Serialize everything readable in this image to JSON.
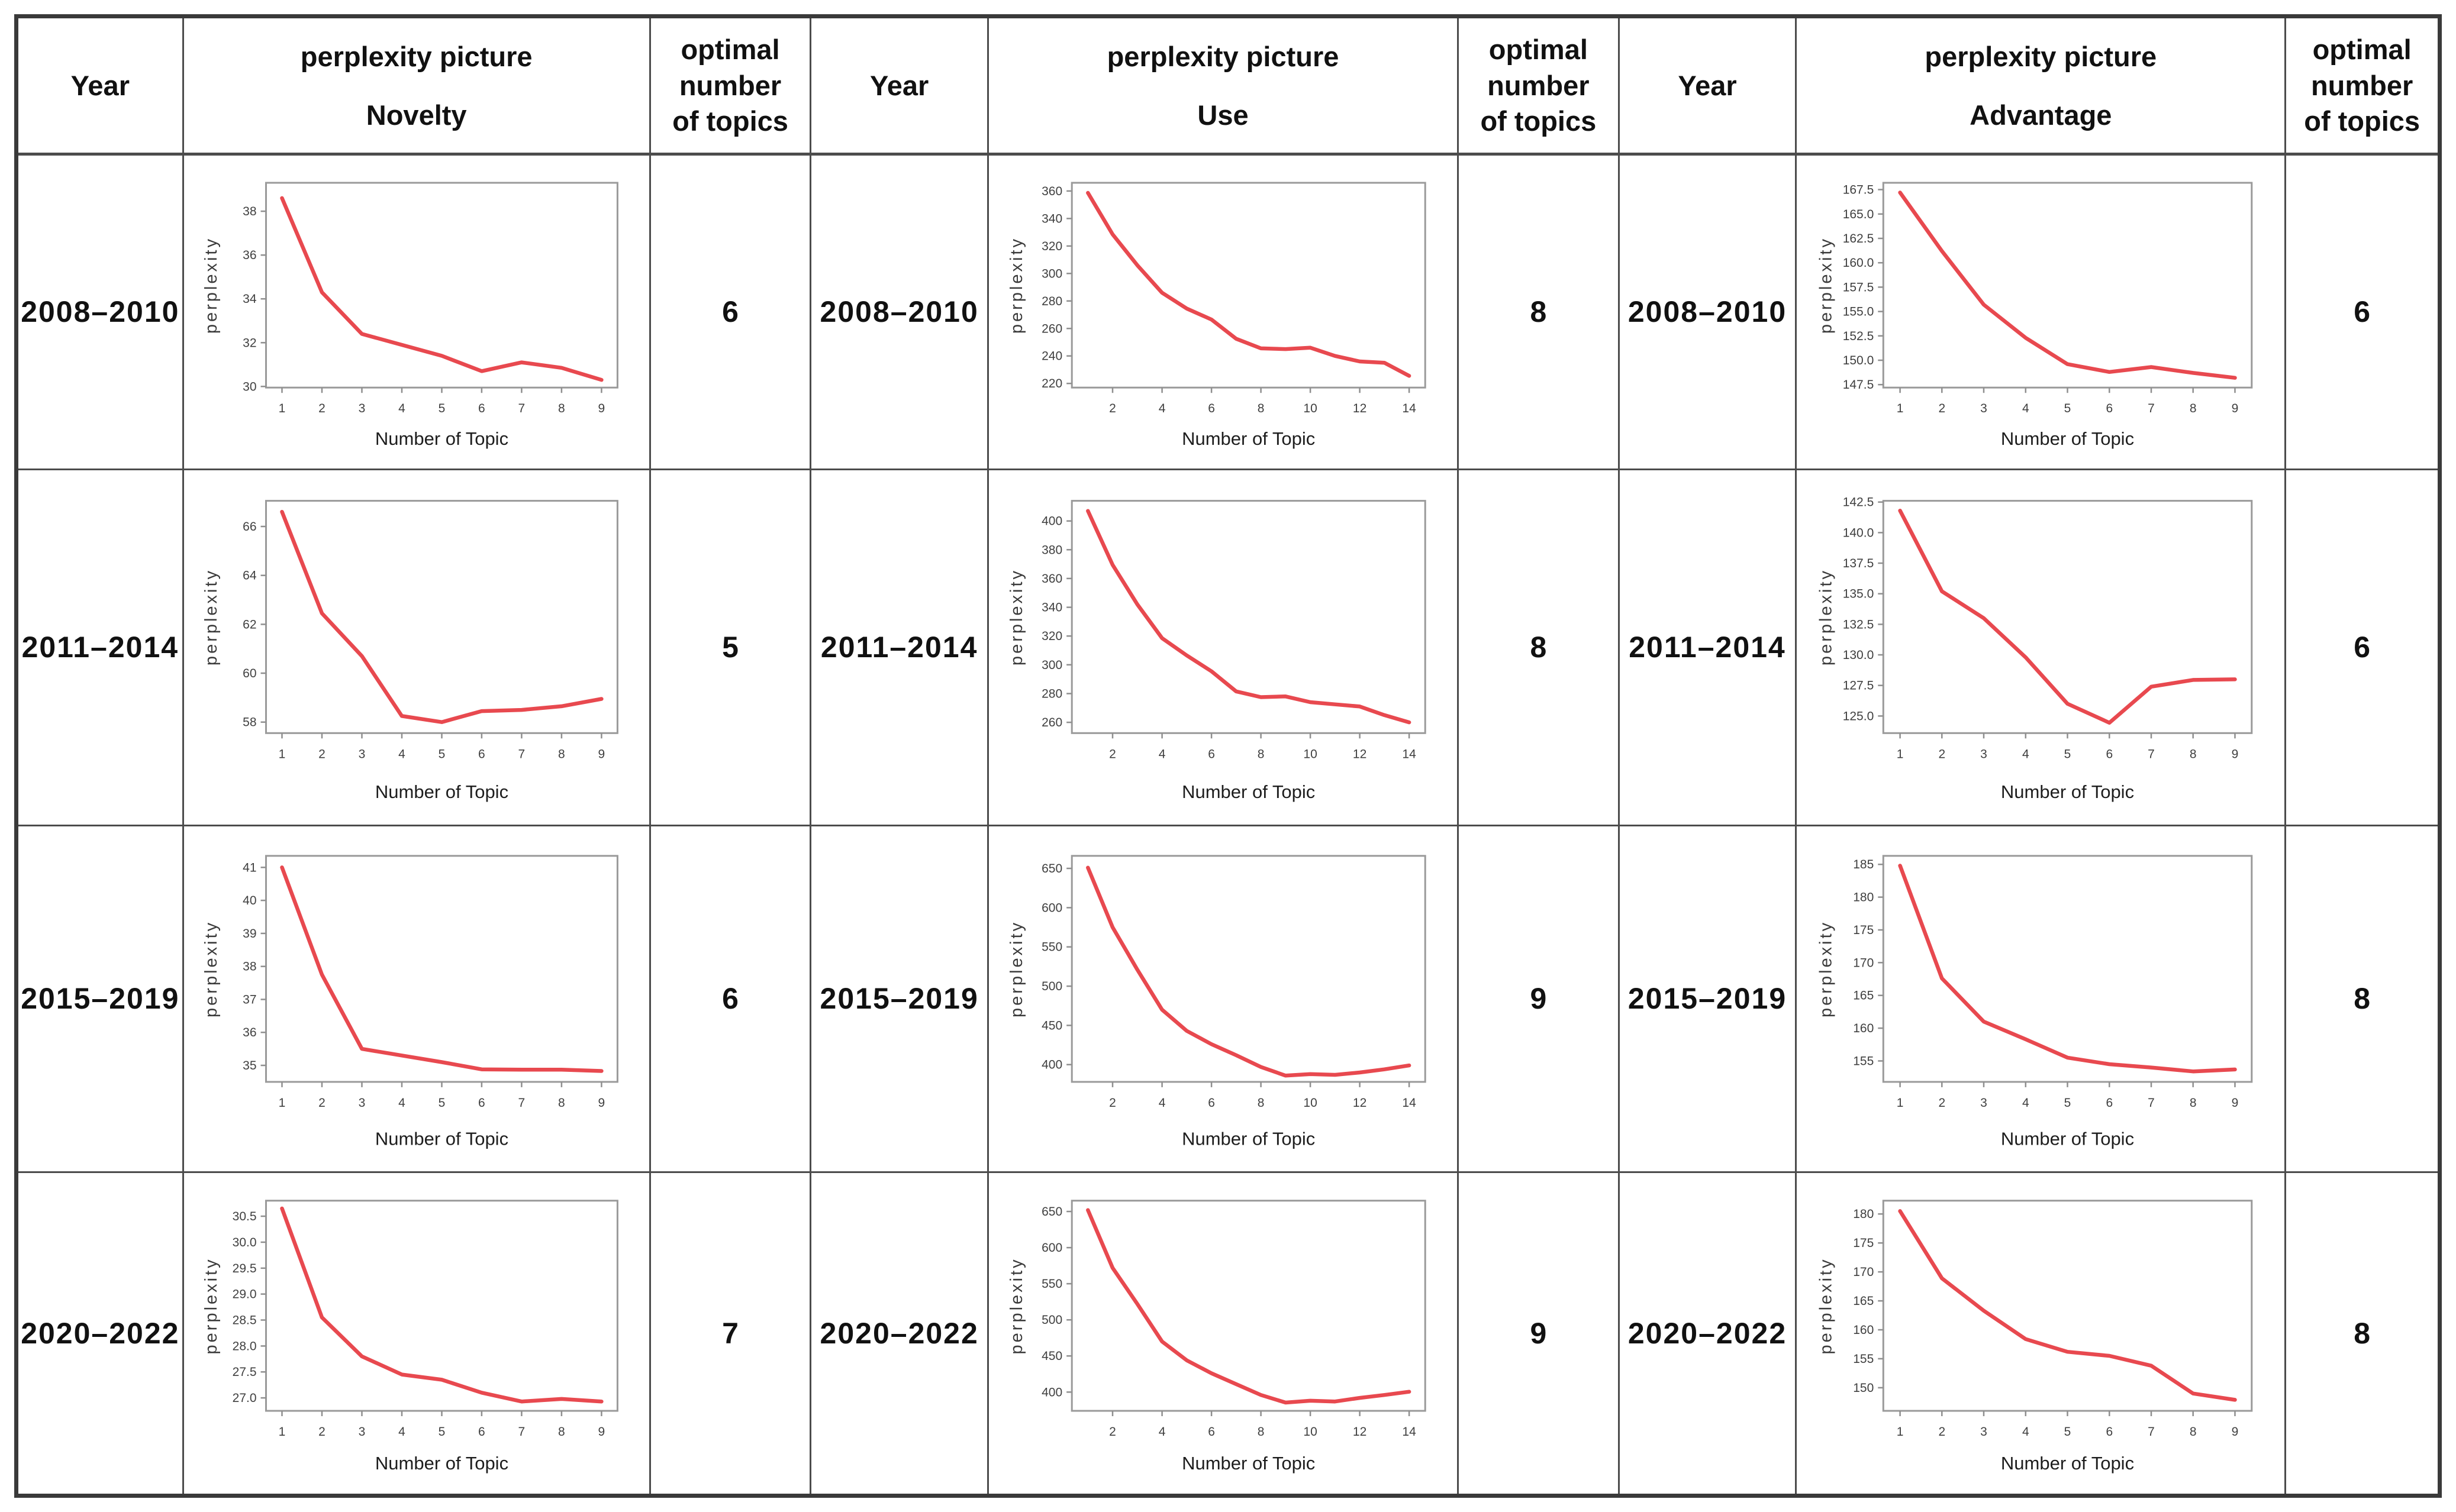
{
  "accent": "#e8494f",
  "frame_color": "#9a9a9a",
  "table": {
    "headers": {
      "year": "Year",
      "picture": "perplexity picture",
      "optimal": "optimal\nnumber\nof topics"
    },
    "sections": [
      "Novelty",
      "Use",
      "Advantage"
    ]
  },
  "rows": [
    {
      "year": "2008–2010",
      "novelty_optimal": "6",
      "use_optimal": "8",
      "advantage_optimal": "6"
    },
    {
      "year": "2011–2014",
      "novelty_optimal": "5",
      "use_optimal": "8",
      "advantage_optimal": "6"
    },
    {
      "year": "2015–2019",
      "novelty_optimal": "6",
      "use_optimal": "9",
      "advantage_optimal": "8"
    },
    {
      "year": "2020–2022",
      "novelty_optimal": "7",
      "use_optimal": "9",
      "advantage_optimal": "8"
    }
  ],
  "chart_data": [
    {
      "type": "line",
      "section": "Novelty",
      "year": "2008–2010",
      "xlabel": "Number of Topic",
      "ylabel": "perplexity",
      "x": [
        1,
        2,
        3,
        4,
        5,
        6,
        7,
        8,
        9
      ],
      "values": [
        38.6,
        34.3,
        32.4,
        31.9,
        31.4,
        30.7,
        31.1,
        30.85,
        30.3
      ],
      "xticks": [
        "1",
        "2",
        "3",
        "4",
        "5",
        "6",
        "7",
        "8",
        "9"
      ],
      "yticks": [
        "30",
        "32",
        "34",
        "36",
        "38"
      ],
      "ylim": [
        29.95,
        39.3
      ],
      "grid": false,
      "legend": null
    },
    {
      "type": "line",
      "section": "Use",
      "year": "2008–2010",
      "xlabel": "Number of Topic",
      "ylabel": "perplexity",
      "x": [
        1,
        2,
        3,
        4,
        5,
        6,
        7,
        8,
        9,
        10,
        11,
        12,
        13,
        14
      ],
      "values": [
        358.7,
        328.5,
        306,
        286,
        274.5,
        266.5,
        252.5,
        245.5,
        245,
        246,
        240,
        236,
        235,
        225.5
      ],
      "xticks": [
        "2",
        "4",
        "6",
        "8",
        "10",
        "12",
        "14"
      ],
      "yticks": [
        "220",
        "240",
        "260",
        "280",
        "300",
        "320",
        "340",
        "360"
      ],
      "ylim": [
        217,
        366
      ],
      "grid": false,
      "legend": null
    },
    {
      "type": "line",
      "section": "Advantage",
      "year": "2008–2010",
      "xlabel": "Number of Topic",
      "ylabel": "perplexity",
      "x": [
        1,
        2,
        3,
        4,
        5,
        6,
        7,
        8,
        9
      ],
      "values": [
        167.2,
        161.2,
        155.7,
        152.3,
        149.6,
        148.8,
        149.3,
        148.7,
        148.2
      ],
      "xticks": [
        "1",
        "2",
        "3",
        "4",
        "5",
        "6",
        "7",
        "8",
        "9"
      ],
      "yticks": [
        "147.5",
        "150.0",
        "152.5",
        "155.0",
        "157.5",
        "160.0",
        "162.5",
        "165.0",
        "167.5"
      ],
      "ylim": [
        147.2,
        168.2
      ],
      "grid": false,
      "legend": null
    },
    {
      "type": "line",
      "section": "Novelty",
      "year": "2011–2014",
      "xlabel": "Number of Topic",
      "ylabel": "perplexity",
      "x": [
        1,
        2,
        3,
        4,
        5,
        6,
        7,
        8,
        9
      ],
      "values": [
        66.6,
        62.45,
        60.7,
        58.25,
        58.0,
        58.45,
        58.5,
        58.65,
        58.95
      ],
      "xticks": [
        "1",
        "2",
        "3",
        "4",
        "5",
        "6",
        "7",
        "8",
        "9"
      ],
      "yticks": [
        "58",
        "60",
        "62",
        "64",
        "66"
      ],
      "ylim": [
        57.55,
        67.05
      ],
      "grid": false,
      "legend": null
    },
    {
      "type": "line",
      "section": "Use",
      "year": "2011–2014",
      "xlabel": "Number of Topic",
      "ylabel": "perplexity",
      "x": [
        1,
        2,
        3,
        4,
        5,
        6,
        7,
        8,
        9,
        10,
        11,
        12,
        13,
        14
      ],
      "values": [
        407,
        369.5,
        342,
        318.5,
        306.5,
        295.5,
        281.5,
        277.5,
        278,
        274,
        272.5,
        271,
        265,
        260
      ],
      "xticks": [
        "2",
        "4",
        "6",
        "8",
        "10",
        "12",
        "14"
      ],
      "yticks": [
        "260",
        "280",
        "300",
        "320",
        "340",
        "360",
        "380",
        "400"
      ],
      "ylim": [
        252.5,
        414
      ],
      "grid": false,
      "legend": null
    },
    {
      "type": "line",
      "section": "Advantage",
      "year": "2011–2014",
      "xlabel": "Number of Topic",
      "ylabel": "perplexity",
      "x": [
        1,
        2,
        3,
        4,
        5,
        6,
        7,
        8,
        9
      ],
      "values": [
        141.8,
        135.2,
        133.0,
        129.8,
        126.0,
        124.45,
        127.4,
        127.95,
        128.0
      ],
      "xticks": [
        "1",
        "2",
        "3",
        "4",
        "5",
        "6",
        "7",
        "8",
        "9"
      ],
      "yticks": [
        "125.0",
        "127.5",
        "130.0",
        "132.5",
        "135.0",
        "137.5",
        "140.0",
        "142.5"
      ],
      "ylim": [
        123.6,
        142.6
      ],
      "grid": false,
      "legend": null
    },
    {
      "type": "line",
      "section": "Novelty",
      "year": "2015–2019",
      "xlabel": "Number of Topic",
      "ylabel": "perplexity",
      "x": [
        1,
        2,
        3,
        4,
        5,
        6,
        7,
        8,
        9
      ],
      "values": [
        41.0,
        37.75,
        35.5,
        35.3,
        35.1,
        34.88,
        34.87,
        34.87,
        34.83
      ],
      "xticks": [
        "1",
        "2",
        "3",
        "4",
        "5",
        "6",
        "7",
        "8",
        "9"
      ],
      "yticks": [
        "35",
        "36",
        "37",
        "38",
        "39",
        "40",
        "41"
      ],
      "ylim": [
        34.5,
        41.35
      ],
      "grid": false,
      "legend": null
    },
    {
      "type": "line",
      "section": "Use",
      "year": "2015–2019",
      "xlabel": "Number of Topic",
      "ylabel": "perplexity",
      "x": [
        1,
        2,
        3,
        4,
        5,
        6,
        7,
        8,
        9,
        10,
        11,
        12,
        13,
        14
      ],
      "values": [
        651,
        575,
        521,
        470,
        443,
        426,
        412,
        397,
        386,
        388,
        387,
        390,
        394,
        399
      ],
      "xticks": [
        "2",
        "4",
        "6",
        "8",
        "10",
        "12",
        "14"
      ],
      "yticks": [
        "400",
        "450",
        "500",
        "550",
        "600",
        "650"
      ],
      "ylim": [
        378,
        666
      ],
      "grid": false,
      "legend": null
    },
    {
      "type": "line",
      "section": "Advantage",
      "year": "2015–2019",
      "xlabel": "Number of Topic",
      "ylabel": "perplexity",
      "x": [
        1,
        2,
        3,
        4,
        5,
        6,
        7,
        8,
        9
      ],
      "values": [
        184.8,
        167.6,
        161.0,
        158.3,
        155.5,
        154.5,
        154.0,
        153.4,
        153.7
      ],
      "xticks": [
        "1",
        "2",
        "3",
        "4",
        "5",
        "6",
        "7",
        "8",
        "9"
      ],
      "yticks": [
        "155",
        "160",
        "165",
        "170",
        "175",
        "180",
        "185"
      ],
      "ylim": [
        151.8,
        186.3
      ],
      "grid": false,
      "legend": null
    },
    {
      "type": "line",
      "section": "Novelty",
      "year": "2020–2022",
      "xlabel": "Number of Topic",
      "ylabel": "perplexity",
      "x": [
        1,
        2,
        3,
        4,
        5,
        6,
        7,
        8,
        9
      ],
      "values": [
        30.65,
        28.55,
        27.8,
        27.45,
        27.35,
        27.1,
        26.93,
        26.98,
        26.93
      ],
      "xticks": [
        "1",
        "2",
        "3",
        "4",
        "5",
        "6",
        "7",
        "8",
        "9"
      ],
      "yticks": [
        "27.0",
        "27.5",
        "28.0",
        "28.5",
        "29.0",
        "29.5",
        "30.0",
        "30.5"
      ],
      "ylim": [
        26.75,
        30.8
      ],
      "grid": false,
      "legend": null
    },
    {
      "type": "line",
      "section": "Use",
      "year": "2020–2022",
      "xlabel": "Number of Topic",
      "ylabel": "perplexity",
      "x": [
        1,
        2,
        3,
        4,
        5,
        6,
        7,
        8,
        9,
        10,
        11,
        12,
        13,
        14
      ],
      "values": [
        652,
        572,
        522,
        470,
        444,
        426,
        411,
        396,
        385.5,
        388,
        387,
        392,
        396,
        400.5
      ],
      "xticks": [
        "2",
        "4",
        "6",
        "8",
        "10",
        "12",
        "14"
      ],
      "yticks": [
        "400",
        "450",
        "500",
        "550",
        "600",
        "650"
      ],
      "ylim": [
        374,
        665
      ],
      "grid": false,
      "legend": null
    },
    {
      "type": "line",
      "section": "Advantage",
      "year": "2020–2022",
      "xlabel": "Number of Topic",
      "ylabel": "perplexity",
      "x": [
        1,
        2,
        3,
        4,
        5,
        6,
        7,
        8,
        9
      ],
      "values": [
        180.5,
        168.9,
        163.3,
        158.4,
        156.2,
        155.5,
        153.8,
        149.0,
        147.9
      ],
      "xticks": [
        "1",
        "2",
        "3",
        "4",
        "5",
        "6",
        "7",
        "8",
        "9"
      ],
      "yticks": [
        "150",
        "155",
        "160",
        "165",
        "170",
        "175",
        "180"
      ],
      "ylim": [
        146,
        182.3
      ],
      "grid": false,
      "legend": null
    }
  ]
}
